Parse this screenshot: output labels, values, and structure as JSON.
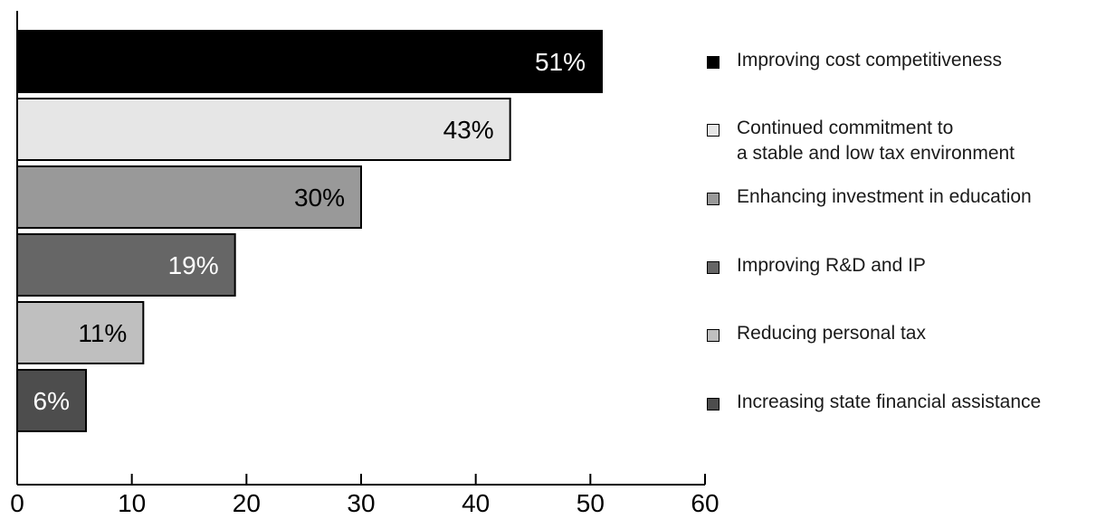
{
  "chart_data": {
    "type": "bar",
    "orientation": "horizontal",
    "categories": [
      "Improving cost competitiveness",
      "Continued commitment to a stable and low tax environment",
      "Enhancing investment in education",
      "Improving R&D and IP",
      "Reducing personal tax",
      "Increasing state financial assistance"
    ],
    "values": [
      51,
      43,
      30,
      19,
      11,
      6
    ],
    "value_labels": [
      "51%",
      "43%",
      "30%",
      "19%",
      "11%",
      "6%"
    ],
    "colors": [
      "#000000",
      "#e6e6e6",
      "#999999",
      "#666666",
      "#bfbfbf",
      "#4d4d4d"
    ],
    "label_colors": [
      "#ffffff",
      "#000000",
      "#000000",
      "#ffffff",
      "#000000",
      "#ffffff"
    ],
    "xlim": [
      0,
      60
    ],
    "xticks": [
      0,
      10,
      20,
      30,
      40,
      50,
      60
    ],
    "xtick_labels": [
      "0",
      "10",
      "20",
      "30",
      "40",
      "50",
      "60"
    ],
    "title": "",
    "xlabel": "",
    "ylabel": "",
    "grid": false,
    "legend": {
      "position": "right",
      "entries": [
        {
          "lines": [
            "Improving cost competitiveness"
          ],
          "color": "#000000"
        },
        {
          "lines": [
            "Continued commitment to",
            "a stable and low tax environment"
          ],
          "color": "#e6e6e6"
        },
        {
          "lines": [
            "Enhancing investment in education"
          ],
          "color": "#999999"
        },
        {
          "lines": [
            "Improving R&D and IP"
          ],
          "color": "#666666"
        },
        {
          "lines": [
            "Reducing personal tax"
          ],
          "color": "#bfbfbf"
        },
        {
          "lines": [
            "Increasing state financial assistance"
          ],
          "color": "#4d4d4d"
        }
      ]
    }
  }
}
